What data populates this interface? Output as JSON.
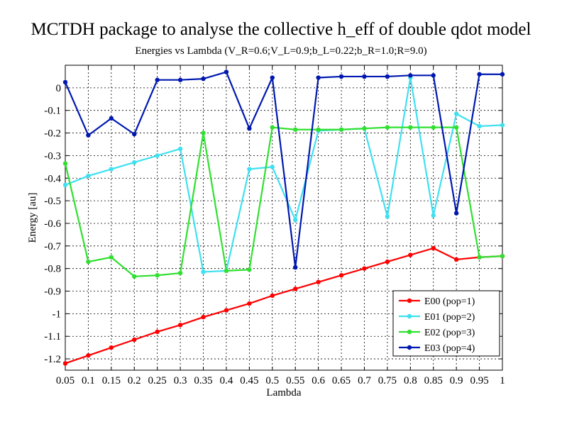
{
  "chart_data": {
    "type": "line",
    "title": "MCTDH package to analyse the collective h_eff of double qdot model",
    "subtitle": "Energies vs Lambda (V_R=0.6;V_L=0.9;b_L=0.22;b_R=1.0;R=9.0)",
    "xlabel": "Lambda",
    "ylabel": "Energy [au]",
    "xlim": [
      0.05,
      1.0
    ],
    "ylim": [
      -1.25,
      0.1
    ],
    "xticks": [
      0.05,
      0.1,
      0.15,
      0.2,
      0.25,
      0.3,
      0.35,
      0.4,
      0.45,
      0.5,
      0.55,
      0.6,
      0.65,
      0.7,
      0.75,
      0.8,
      0.85,
      0.9,
      0.95,
      1.0
    ],
    "xtick_labels": [
      "0.05",
      "0.1",
      "0.15",
      "0.2",
      "0.25",
      "0.3",
      "0.35",
      "0.4",
      "0.45",
      "0.5",
      "0.55",
      "0.6",
      "0.65",
      "0.7",
      "0.75",
      "0.8",
      "0.85",
      "0.9",
      "0.95",
      "1"
    ],
    "yticks": [
      0,
      -0.1,
      -0.2,
      -0.3,
      -0.4,
      -0.5,
      -0.6,
      -0.7,
      -0.8,
      -0.9,
      -1.0,
      -1.1,
      -1.2
    ],
    "ytick_labels": [
      "0",
      "-0.1",
      "-0.2",
      "-0.3",
      "-0.4",
      "-0.5",
      "-0.6",
      "-0.7",
      "-0.8",
      "-0.9",
      "-1",
      "-1.1",
      "-1.2"
    ],
    "grid": true,
    "legend_position": "bottom-right",
    "x": [
      0.05,
      0.1,
      0.15,
      0.2,
      0.25,
      0.3,
      0.35,
      0.4,
      0.45,
      0.5,
      0.55,
      0.6,
      0.65,
      0.7,
      0.75,
      0.8,
      0.85,
      0.9,
      0.95,
      1.0
    ],
    "series": [
      {
        "name": "E00 (pop=1)",
        "color": "#ff0000",
        "values": [
          -1.22,
          -1.185,
          -1.15,
          -1.115,
          -1.08,
          -1.05,
          -1.015,
          -0.985,
          -0.955,
          -0.92,
          -0.89,
          -0.86,
          -0.83,
          -0.8,
          -0.77,
          -0.74,
          -0.71,
          -0.76,
          -0.75,
          -0.745
        ]
      },
      {
        "name": "E01 (pop=2)",
        "color": "#40e0f0",
        "values": [
          -0.43,
          -0.39,
          -0.36,
          -0.33,
          -0.3,
          -0.27,
          -0.815,
          -0.81,
          -0.36,
          -0.35,
          -0.585,
          -0.19,
          -0.185,
          -0.18,
          -0.57,
          0.045,
          -0.565,
          -0.115,
          -0.17,
          -0.165
        ]
      },
      {
        "name": "E02 (pop=3)",
        "color": "#30e030",
        "values": [
          -0.335,
          -0.77,
          -0.75,
          -0.835,
          -0.83,
          -0.82,
          -0.2,
          -0.81,
          -0.805,
          -0.175,
          -0.185,
          -0.185,
          -0.185,
          -0.18,
          -0.175,
          -0.175,
          -0.175,
          -0.175,
          -0.75,
          -0.745
        ]
      },
      {
        "name": "E03 (pop=4)",
        "color": "#0018b0",
        "values": [
          0.025,
          -0.21,
          -0.135,
          -0.205,
          0.035,
          0.035,
          0.04,
          0.07,
          -0.18,
          0.045,
          -0.795,
          0.045,
          0.05,
          0.05,
          0.05,
          0.055,
          0.055,
          -0.555,
          0.06,
          0.06
        ]
      }
    ]
  }
}
